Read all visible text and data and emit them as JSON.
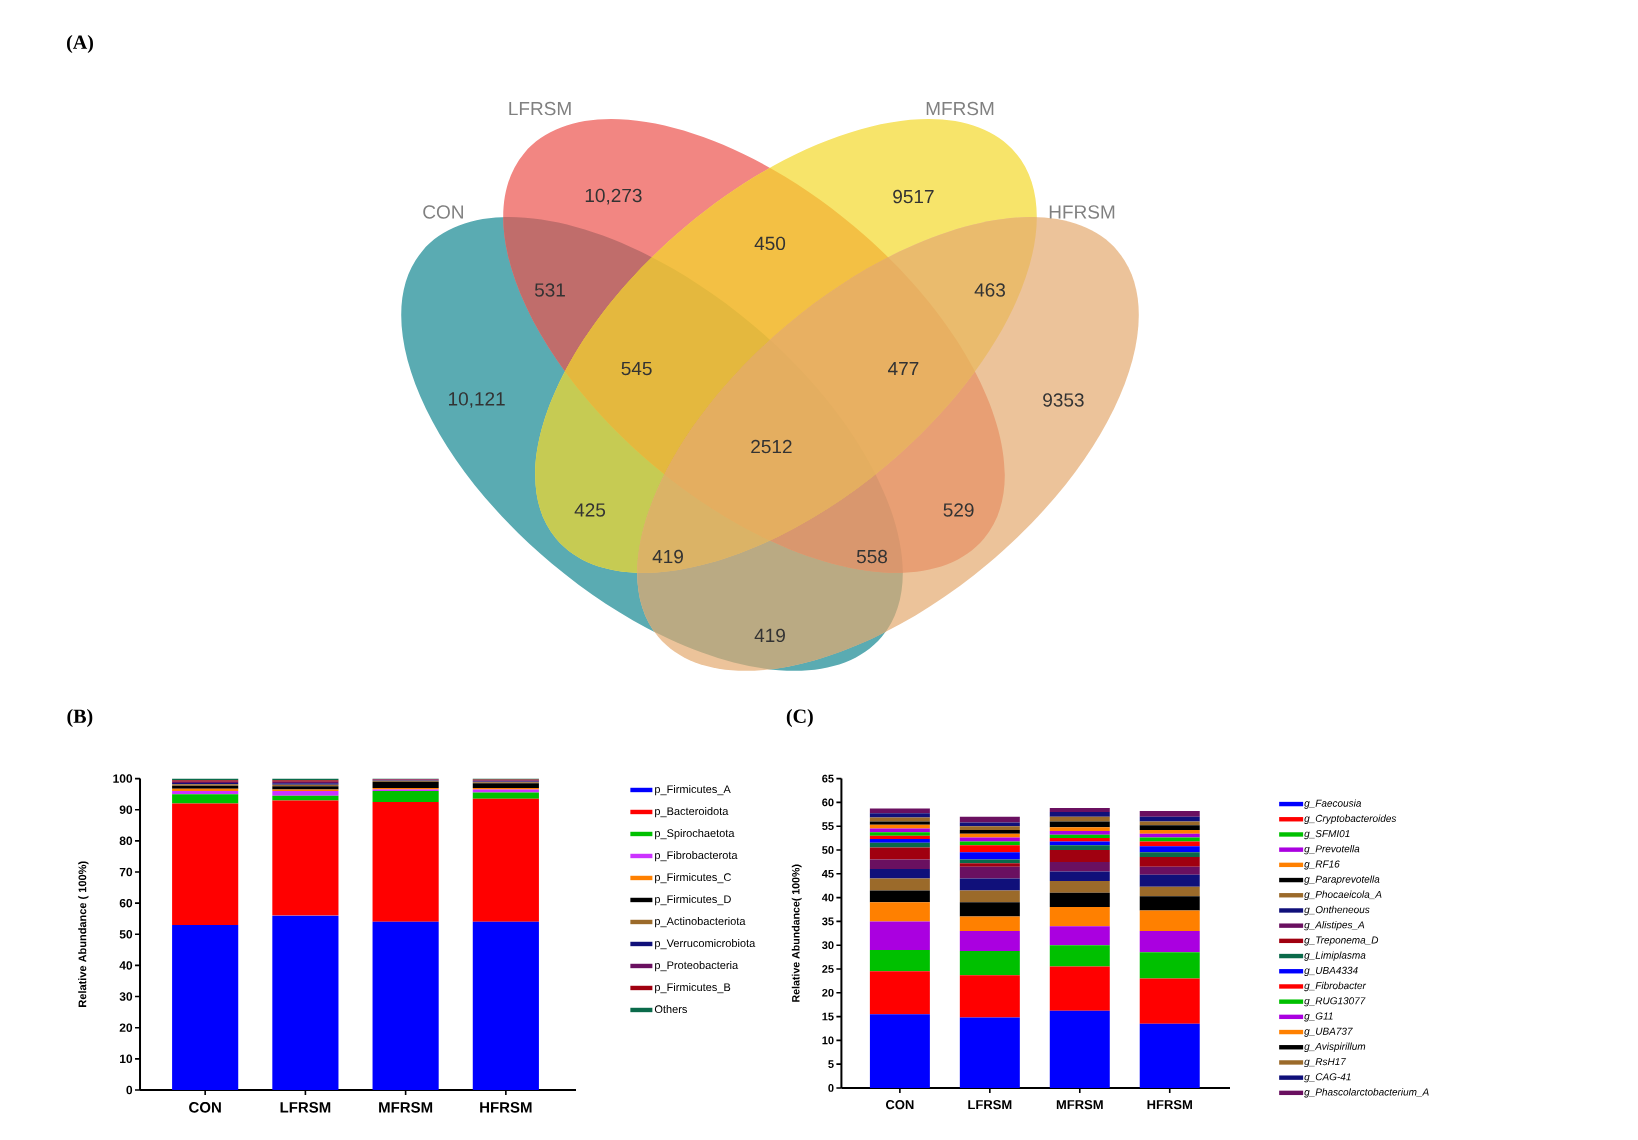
{
  "chart_data": [
    {
      "type": "other",
      "title": "(A)",
      "series": [
        {
          "name": "CON"
        },
        {
          "name": "LFRSM"
        },
        {
          "name": "MFRSM"
        },
        {
          "name": "HFRSM"
        }
      ],
      "annotations": [
        "10,273",
        "9517",
        "10,121",
        "9353",
        "531",
        "450",
        "463",
        "545",
        "477",
        "2512",
        "425",
        "529",
        "419",
        "558",
        "419"
      ]
    },
    {
      "type": "bar",
      "title": "(B)",
      "ylabel": "Relative Abundance ( 100%)",
      "categories": [
        "CON",
        "LFRSM",
        "MFRSM",
        "HFRSM"
      ],
      "stacked": true,
      "ylim": [
        0,
        100
      ],
      "yticks": [
        0,
        10,
        20,
        30,
        40,
        50,
        60,
        70,
        80,
        90,
        100
      ],
      "legend": "right",
      "series": [
        {
          "name": "p_Firmicutes_A",
          "color": "#0000ff",
          "values": [
            53,
            56,
            54,
            54
          ]
        },
        {
          "name": "p_Bacteroidota",
          "color": "#ff0000",
          "values": [
            39,
            37,
            38.5,
            39.5
          ]
        },
        {
          "name": "p_Spirochaetota",
          "color": "#00c000",
          "values": [
            3,
            1.5,
            3.5,
            2
          ]
        },
        {
          "name": "p_Fibrobacterota",
          "color": "#cc33ff",
          "values": [
            1,
            1.5,
            0.5,
            1
          ]
        },
        {
          "name": "p_Firmicutes_C",
          "color": "#ff8000",
          "values": [
            0.7,
            0.5,
            0.5,
            0.5
          ]
        },
        {
          "name": "p_Firmicutes_D",
          "color": "#000000",
          "values": [
            1,
            1,
            2,
            1.5
          ]
        },
        {
          "name": "p_Actinobacteriota",
          "color": "#9b6a2a",
          "values": [
            0.5,
            0.5,
            0.3,
            0.3
          ]
        },
        {
          "name": "p_Verrucomicrobiota",
          "color": "#10107a",
          "values": [
            0.4,
            0.5,
            0.2,
            0.3
          ]
        },
        {
          "name": "p_Proteobacteria",
          "color": "#6a1060",
          "values": [
            0.4,
            0.5,
            0.2,
            0.3
          ]
        },
        {
          "name": "p_Firmicutes_B",
          "color": "#a00010",
          "values": [
            0.5,
            0.5,
            0.2,
            0.3
          ]
        },
        {
          "name": "Others",
          "color": "#0a6a4a",
          "values": [
            0.5,
            0.5,
            0.1,
            0.3
          ]
        }
      ]
    },
    {
      "type": "bar",
      "title": "(C)",
      "ylabel": "Relative Abundance( 100%)",
      "categories": [
        "CON",
        "LFRSM",
        "MFRSM",
        "HFRSM"
      ],
      "stacked": true,
      "ylim": [
        0,
        65
      ],
      "yticks": [
        0,
        5,
        10,
        15,
        20,
        25,
        30,
        35,
        40,
        45,
        50,
        55,
        60,
        65
      ],
      "legend": "right",
      "series": [
        {
          "name": "g_Faecousia",
          "color": "#0000ff",
          "values": [
            15.5,
            14.8,
            16.2,
            13.5
          ]
        },
        {
          "name": "g_Cryptobacteroides",
          "color": "#ff0000",
          "values": [
            9,
            8.9,
            9.3,
            9.5
          ]
        },
        {
          "name": "g_SFMI01",
          "color": "#00c000",
          "values": [
            4.5,
            5.1,
            4.5,
            5.5
          ]
        },
        {
          "name": "g_Prevotella",
          "color": "#aa00e0",
          "values": [
            6,
            4.2,
            4,
            4.5
          ]
        },
        {
          "name": "g_RF16",
          "color": "#ff8000",
          "values": [
            4,
            3,
            4,
            4.3
          ]
        },
        {
          "name": "g_Paraprevotella",
          "color": "#000000",
          "values": [
            2.5,
            3,
            3,
            3
          ]
        },
        {
          "name": "g_Phocaeicola_A",
          "color": "#9b6a2a",
          "values": [
            2.5,
            2.5,
            2.5,
            2
          ]
        },
        {
          "name": "g_Ontheneous",
          "color": "#10107a",
          "values": [
            2,
            2.5,
            2,
            2.5
          ]
        },
        {
          "name": "g_Alistipes_A",
          "color": "#6a1060",
          "values": [
            2,
            2.5,
            2,
            1.7
          ]
        },
        {
          "name": "g_Treponema_D",
          "color": "#a00010",
          "values": [
            2.5,
            0.7,
            2.5,
            2
          ]
        },
        {
          "name": "g_Limiplasma",
          "color": "#0a6a4a",
          "values": [
            1,
            0.8,
            1,
            1
          ]
        },
        {
          "name": "g_UBA4334",
          "color": "#0000ff",
          "values": [
            0.8,
            1.5,
            0.8,
            1.3
          ]
        },
        {
          "name": "g_Fibrobacter",
          "color": "#ff0000",
          "values": [
            0.7,
            1.5,
            0.7,
            1
          ]
        },
        {
          "name": "g_RUG13077",
          "color": "#00c000",
          "values": [
            0.7,
            0.8,
            0.7,
            0.8
          ]
        },
        {
          "name": "g_G11",
          "color": "#aa00e0",
          "values": [
            0.8,
            0.8,
            0.8,
            0.8
          ]
        },
        {
          "name": "g_UBA737",
          "color": "#ff8000",
          "values": [
            0.8,
            0.8,
            0.8,
            0.8
          ]
        },
        {
          "name": "g_Avispirillum",
          "color": "#000000",
          "values": [
            0.7,
            0.8,
            1.2,
            1
          ]
        },
        {
          "name": "g_RsH17",
          "color": "#9b6a2a",
          "values": [
            0.8,
            0.8,
            1,
            0.8
          ]
        },
        {
          "name": "g_CAG-41",
          "color": "#10107a",
          "values": [
            0.9,
            0.8,
            1,
            1
          ]
        },
        {
          "name": "g_Phascolarctobacterium_A",
          "color": "#6a1060",
          "values": [
            1,
            1.2,
            0.8,
            1.2
          ]
        }
      ]
    }
  ]
}
